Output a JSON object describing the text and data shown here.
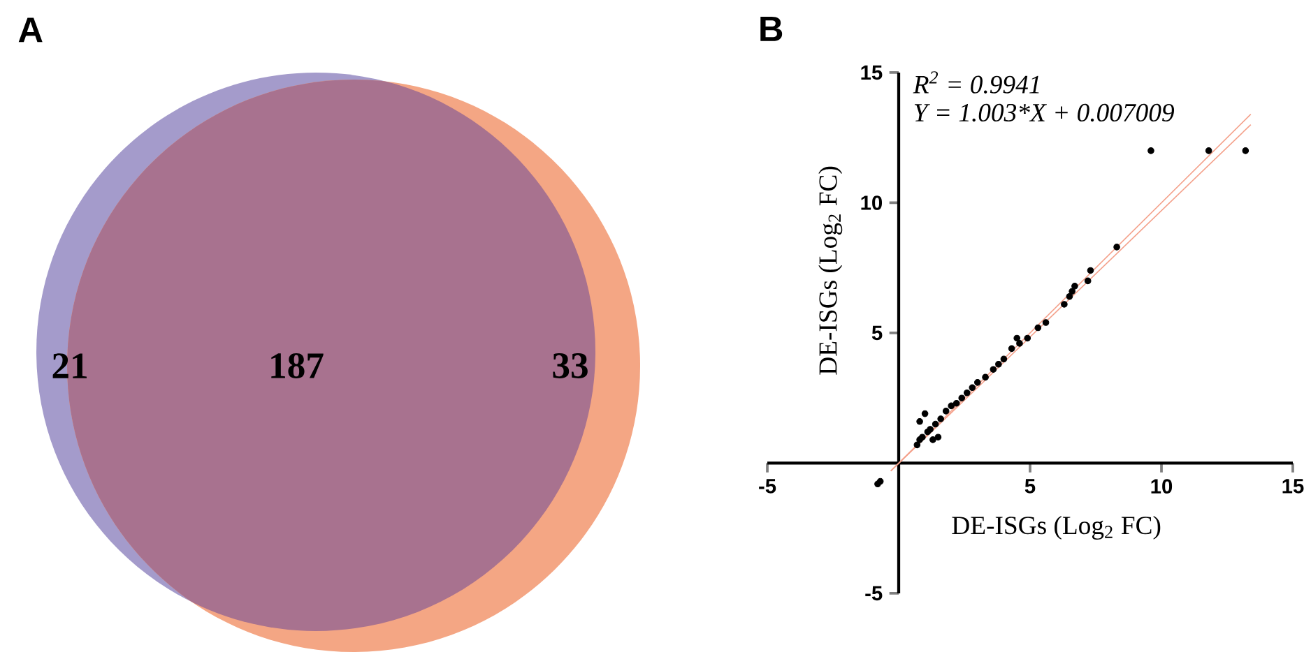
{
  "chart_data": [
    {
      "type": "other",
      "title": "A",
      "values": [
        21,
        187,
        33
      ],
      "data_labels": true,
      "colors": [
        "#a49bcb",
        "#a8728f",
        "#f4a684"
      ]
    },
    {
      "type": "scatter",
      "title": "B",
      "xlabel": "DE-ISGs (Log$_{2}$ FC)",
      "ylabel": "DE-ISGs (Log$_{2}$ FC)",
      "xlim": [
        -5,
        15
      ],
      "ylim": [
        -5,
        15
      ],
      "xticks": [
        -5,
        5,
        10,
        15
      ],
      "yticks": [
        -5,
        5,
        10,
        15
      ],
      "annotations": [
        "R$^{2}$ = 0.9941",
        "Y = 1.003*X + 0.007009"
      ],
      "series": [
        {
          "type": "scatter",
          "marker": "circle",
          "color": "#000000",
          "x": [
            9.6,
            11.8,
            13.2,
            8.3,
            7.3,
            7.2,
            6.7,
            6.6,
            6.5,
            6.3,
            5.6,
            5.3,
            4.9,
            4.5,
            4.6,
            4.3,
            4.0,
            3.8,
            3.6,
            3.3,
            3.0,
            2.8,
            2.6,
            2.4,
            2.2,
            2.0,
            1.8,
            1.6,
            1.4,
            1.2,
            0.8,
            0.7,
            1.0,
            0.8,
            1.5,
            1.3,
            -0.8,
            -0.7,
            0.9,
            1.1
          ],
          "values": [
            12,
            12,
            12,
            8.3,
            7.4,
            7.0,
            6.8,
            6.6,
            6.4,
            6.1,
            5.4,
            5.2,
            4.8,
            4.8,
            4.6,
            4.4,
            4.0,
            3.8,
            3.6,
            3.3,
            3.1,
            2.9,
            2.7,
            2.5,
            2.3,
            2.2,
            2.0,
            1.7,
            1.5,
            1.3,
            0.9,
            0.7,
            1.9,
            1.6,
            1.0,
            0.9,
            -0.8,
            -0.7,
            1.0,
            1.2
          ]
        },
        {
          "type": "line",
          "color": "#f4a08a",
          "x": [
            -0.3,
            13.4
          ],
          "values": [
            -0.3,
            13.4
          ]
        },
        {
          "type": "line",
          "color": "#f4a08a",
          "x": [
            -0.3,
            13.4
          ],
          "values": [
            -0.3,
            13.0
          ]
        }
      ]
    }
  ]
}
